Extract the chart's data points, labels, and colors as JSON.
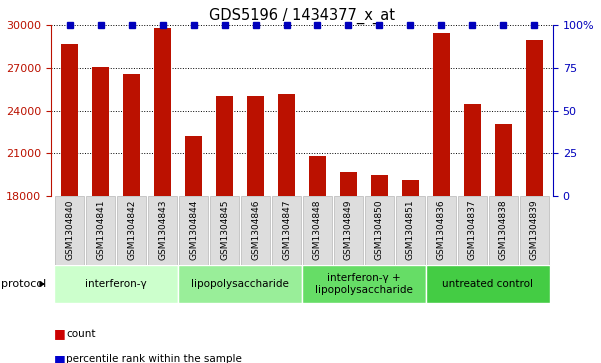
{
  "title": "GDS5196 / 1434377_x_at",
  "samples": [
    "GSM1304840",
    "GSM1304841",
    "GSM1304842",
    "GSM1304843",
    "GSM1304844",
    "GSM1304845",
    "GSM1304846",
    "GSM1304847",
    "GSM1304848",
    "GSM1304849",
    "GSM1304850",
    "GSM1304851",
    "GSM1304836",
    "GSM1304837",
    "GSM1304838",
    "GSM1304839"
  ],
  "counts": [
    28700,
    27100,
    26600,
    29850,
    22200,
    25050,
    25000,
    25200,
    20800,
    19700,
    19500,
    19100,
    29500,
    24500,
    23100,
    29000
  ],
  "percentile_ranks": [
    100,
    100,
    100,
    100,
    100,
    100,
    100,
    100,
    100,
    100,
    100,
    100,
    100,
    100,
    100,
    100
  ],
  "ylim_left": [
    18000,
    30000
  ],
  "ylim_right": [
    0,
    100
  ],
  "yticks_left": [
    18000,
    21000,
    24000,
    27000,
    30000
  ],
  "yticks_right": [
    0,
    25,
    50,
    75,
    100
  ],
  "bar_color": "#BB1100",
  "percentile_color": "#0000BB",
  "background_color": "#FFFFFF",
  "groups": [
    {
      "label": "interferon-γ",
      "start": 0,
      "end": 4,
      "color": "#CCFFCC"
    },
    {
      "label": "lipopolysaccharide",
      "start": 4,
      "end": 8,
      "color": "#99EE99"
    },
    {
      "label": "interferon-γ +\nlipopolysaccharide",
      "start": 8,
      "end": 12,
      "color": "#66DD66"
    },
    {
      "label": "untreated control",
      "start": 12,
      "end": 16,
      "color": "#44CC44"
    }
  ],
  "bar_color_legend": "#CC0000",
  "percentile_color_legend": "#0000CC",
  "tick_label_fontsize": 6.5,
  "title_fontsize": 10.5,
  "bar_width": 0.55
}
